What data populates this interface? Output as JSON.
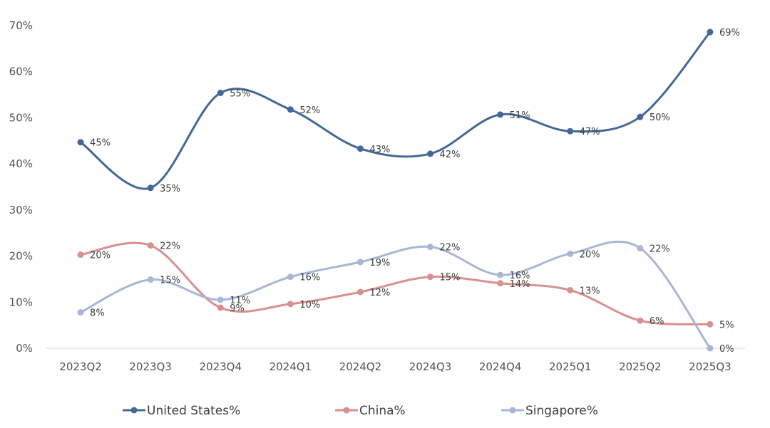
{
  "chart_data": {
    "type": "line",
    "smooth": true,
    "categories": [
      "2023Q2",
      "2023Q3",
      "2023Q4",
      "2024Q1",
      "2024Q2",
      "2024Q3",
      "2024Q4",
      "2025Q1",
      "2025Q2",
      "2025Q3"
    ],
    "ylim": [
      0,
      70
    ],
    "yticks": [
      0,
      10,
      20,
      30,
      40,
      50,
      60,
      70
    ],
    "ytick_labels": [
      "0%",
      "10%",
      "20%",
      "30%",
      "40%",
      "50%",
      "60%",
      "70%"
    ],
    "grid": false,
    "legend_position": "bottom",
    "series": [
      {
        "name": "United States%",
        "color": "#436898",
        "values": [
          44.7,
          34.8,
          55.4,
          51.8,
          43.3,
          42.2,
          50.7,
          47.1,
          50.2,
          68.6
        ],
        "labels": [
          "45%",
          "35%",
          "55%",
          "52%",
          "43%",
          "42%",
          "51%",
          "47%",
          "50%",
          "69%"
        ]
      },
      {
        "name": "China%",
        "color": "#d9908f",
        "values": [
          20.3,
          22.3,
          8.8,
          9.6,
          12.2,
          15.5,
          14.1,
          12.6,
          6.0,
          5.2
        ],
        "labels": [
          "20%",
          "22%",
          "9%",
          "10%",
          "12%",
          "15%",
          "14%",
          "13%",
          "6%",
          "5%"
        ]
      },
      {
        "name": "Singapore%",
        "color": "#a7b7d5",
        "values": [
          7.8,
          14.9,
          10.5,
          15.5,
          18.7,
          22.0,
          15.9,
          20.5,
          21.7,
          0.0
        ],
        "labels": [
          "8%",
          "15%",
          "11%",
          "16%",
          "19%",
          "22%",
          "16%",
          "20%",
          "22%",
          "0%"
        ]
      }
    ]
  }
}
